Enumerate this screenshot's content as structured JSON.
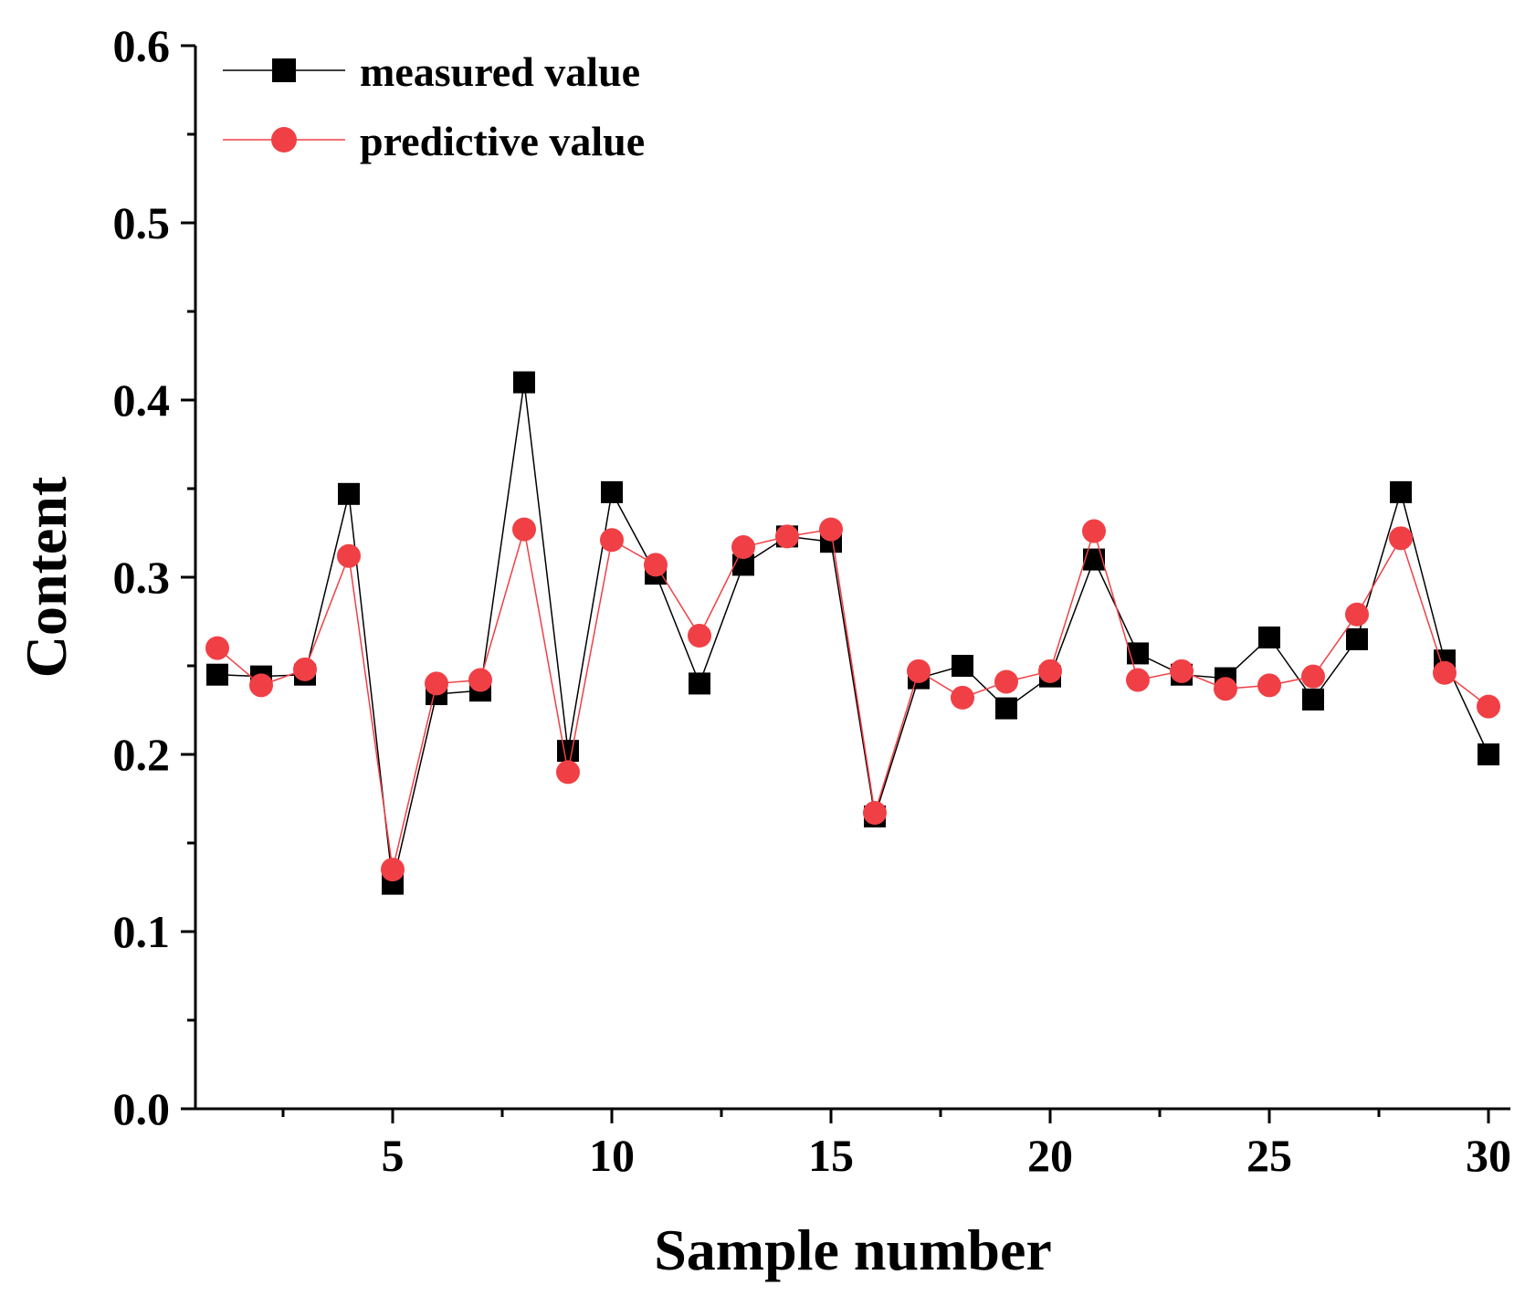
{
  "chart_data": {
    "type": "line",
    "title": "",
    "xlabel": "Sample number",
    "ylabel": "Content",
    "xlim": [
      0.5,
      30.5
    ],
    "ylim": [
      0.0,
      0.6
    ],
    "x_ticks": [
      5,
      10,
      15,
      20,
      25,
      30
    ],
    "y_ticks": [
      0.0,
      0.1,
      0.2,
      0.3,
      0.4,
      0.5,
      0.6
    ],
    "y_tick_labels": [
      "0.0",
      "0.1",
      "0.2",
      "0.3",
      "0.4",
      "0.5",
      "0.6"
    ],
    "legend_position": "top-left",
    "x": [
      1,
      2,
      3,
      4,
      5,
      6,
      7,
      8,
      9,
      10,
      11,
      12,
      13,
      14,
      15,
      16,
      17,
      18,
      19,
      20,
      21,
      22,
      23,
      24,
      25,
      26,
      27,
      28,
      29,
      30
    ],
    "series": [
      {
        "name": "measured value",
        "color": "#000000",
        "marker": "square",
        "values": [
          0.245,
          0.244,
          0.245,
          0.347,
          0.127,
          0.234,
          0.236,
          0.41,
          0.202,
          0.348,
          0.302,
          0.24,
          0.307,
          0.323,
          0.32,
          0.165,
          0.243,
          0.25,
          0.226,
          0.244,
          0.31,
          0.257,
          0.245,
          0.243,
          0.266,
          0.231,
          0.265,
          0.348,
          0.253,
          0.2
        ]
      },
      {
        "name": "predictive value",
        "color": "#f04045",
        "marker": "circle",
        "values": [
          0.26,
          0.239,
          0.248,
          0.312,
          0.135,
          0.24,
          0.242,
          0.327,
          0.19,
          0.321,
          0.307,
          0.267,
          0.317,
          0.323,
          0.327,
          0.167,
          0.247,
          0.232,
          0.241,
          0.247,
          0.326,
          0.242,
          0.247,
          0.237,
          0.239,
          0.244,
          0.279,
          0.322,
          0.246,
          0.227
        ]
      }
    ]
  }
}
